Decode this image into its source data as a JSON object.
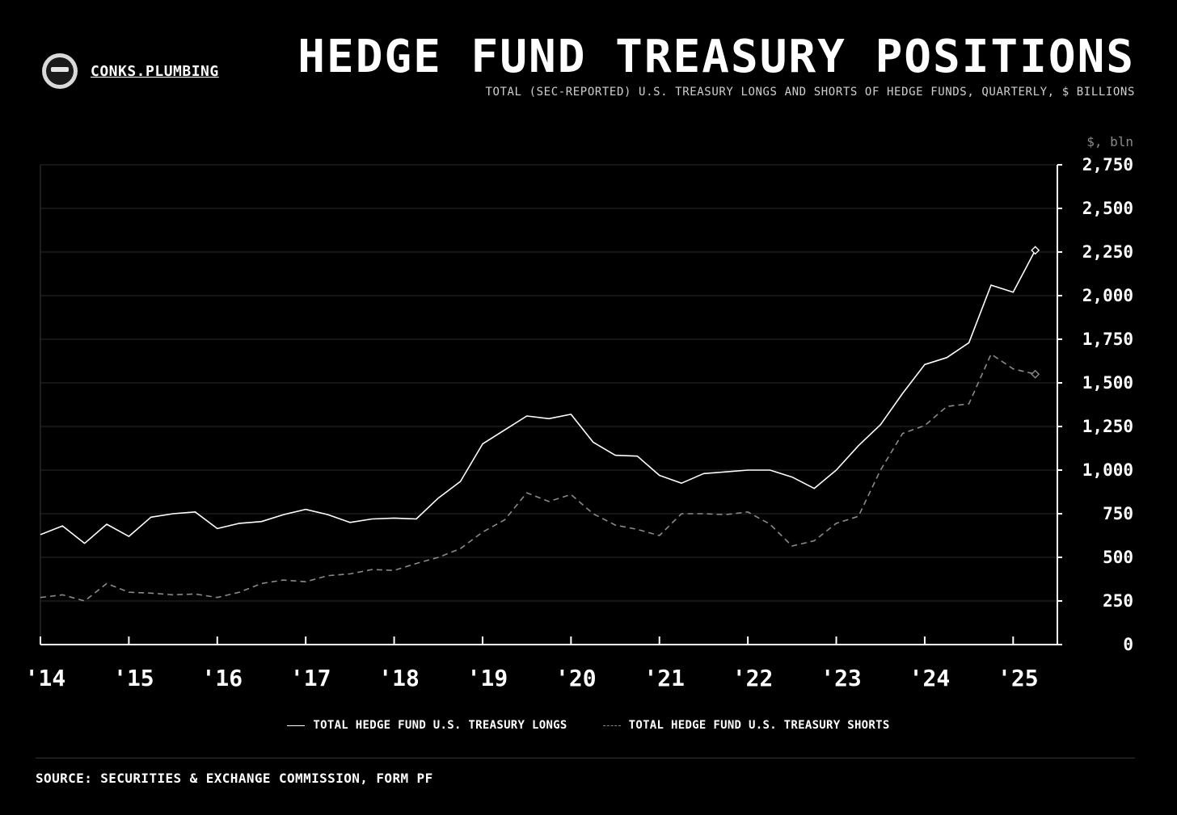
{
  "brand": {
    "name": "CONKS.PLUMBING"
  },
  "header": {
    "title": "HEDGE FUND TREASURY POSITIONS",
    "subtitle": "TOTAL (SEC-REPORTED) U.S. TREASURY LONGS AND SHORTS OF HEDGE FUNDS, QUARTERLY, $ BILLIONS"
  },
  "footer": {
    "source": "SOURCE: SECURITIES & EXCHANGE COMMISSION, FORM PF"
  },
  "colors": {
    "background": "#000000",
    "longs": "#ffffff",
    "shorts": "#8a8a8a",
    "grid": "#2a2a2a"
  },
  "chart_data": {
    "type": "line",
    "title": "HEDGE FUND TREASURY POSITIONS",
    "subtitle": "TOTAL (SEC-REPORTED) U.S. TREASURY LONGS AND SHORTS OF HEDGE FUNDS, QUARTERLY, $ BILLIONS",
    "ylabel": "$, bln",
    "y_axis_position": "right",
    "ylim": [
      0,
      2750
    ],
    "yticks": [
      0,
      250,
      500,
      750,
      1000,
      1250,
      1500,
      1750,
      2000,
      2250,
      2500,
      2750
    ],
    "ytick_labels": [
      "0",
      "250",
      "500",
      "750",
      "1,000",
      "1,250",
      "1,500",
      "1,750",
      "2,000",
      "2,250",
      "2,500",
      "2,750"
    ],
    "xlim": [
      2014.0,
      2025.5
    ],
    "xticks": [
      2014,
      2015,
      2016,
      2017,
      2018,
      2019,
      2020,
      2021,
      2022,
      2023,
      2024,
      2025
    ],
    "xtick_labels": [
      "'14",
      "'15",
      "'16",
      "'17",
      "'18",
      "'19",
      "'20",
      "'21",
      "'22",
      "'23",
      "'24",
      "'25"
    ],
    "grid": "horizontal",
    "legend_position": "bottom-center",
    "series": [
      {
        "name": "TOTAL HEDGE FUND U.S. TREASURY LONGS",
        "style": "solid",
        "x": [
          2014.0,
          2014.25,
          2014.5,
          2014.75,
          2015.0,
          2015.25,
          2015.5,
          2015.75,
          2016.0,
          2016.25,
          2016.5,
          2016.75,
          2017.0,
          2017.25,
          2017.5,
          2017.75,
          2018.0,
          2018.25,
          2018.5,
          2018.75,
          2019.0,
          2019.25,
          2019.5,
          2019.75,
          2020.0,
          2020.25,
          2020.5,
          2020.75,
          2021.0,
          2021.25,
          2021.5,
          2021.75,
          2022.0,
          2022.25,
          2022.5,
          2022.75,
          2023.0,
          2023.25,
          2023.5,
          2023.75,
          2024.0,
          2024.25,
          2024.5,
          2024.75,
          2025.0,
          2025.25
        ],
        "values": [
          630,
          680,
          580,
          690,
          620,
          730,
          750,
          760,
          665,
          695,
          705,
          745,
          775,
          745,
          700,
          720,
          725,
          720,
          840,
          935,
          1150,
          1230,
          1310,
          1295,
          1320,
          1160,
          1085,
          1080,
          970,
          925,
          980,
          990,
          1000,
          1000,
          960,
          895,
          1000,
          1140,
          1260,
          1440,
          1605,
          1645,
          1730,
          2060,
          2020,
          2260
        ],
        "marker_last": "diamond"
      },
      {
        "name": "TOTAL HEDGE FUND U.S. TREASURY SHORTS",
        "style": "dashed",
        "x": [
          2014.0,
          2014.25,
          2014.5,
          2014.75,
          2015.0,
          2015.25,
          2015.5,
          2015.75,
          2016.0,
          2016.25,
          2016.5,
          2016.75,
          2017.0,
          2017.25,
          2017.5,
          2017.75,
          2018.0,
          2018.25,
          2018.5,
          2018.75,
          2019.0,
          2019.25,
          2019.5,
          2019.75,
          2020.0,
          2020.25,
          2020.5,
          2020.75,
          2021.0,
          2021.25,
          2021.5,
          2021.75,
          2022.0,
          2022.25,
          2022.5,
          2022.75,
          2023.0,
          2023.25,
          2023.5,
          2023.75,
          2024.0,
          2024.25,
          2024.5,
          2024.75,
          2025.0,
          2025.25
        ],
        "values": [
          270,
          285,
          250,
          350,
          300,
          295,
          285,
          290,
          270,
          300,
          350,
          370,
          360,
          395,
          405,
          430,
          425,
          465,
          500,
          550,
          645,
          715,
          870,
          820,
          860,
          750,
          685,
          660,
          625,
          750,
          750,
          745,
          760,
          690,
          565,
          595,
          695,
          735,
          1000,
          1210,
          1255,
          1365,
          1380,
          1665,
          1580,
          1550
        ],
        "marker_last": "diamond"
      }
    ]
  }
}
